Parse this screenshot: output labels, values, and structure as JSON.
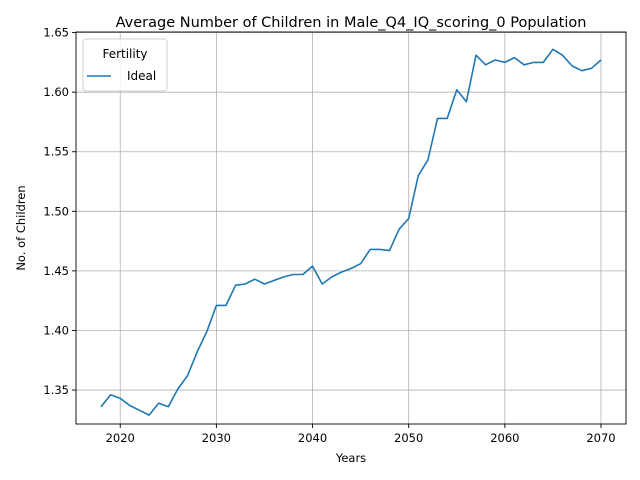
{
  "chart_data": {
    "type": "line",
    "title": "Average Number of Children in Male_Q4_IQ_scoring_0 Population",
    "xlabel": "Years",
    "ylabel": "No. of Children",
    "xlim": [
      2015.4,
      2072.6
    ],
    "ylim": [
      1.3215,
      1.6505
    ],
    "xticks": [
      2020,
      2030,
      2040,
      2050,
      2060,
      2070
    ],
    "yticks": [
      1.35,
      1.4,
      1.45,
      1.5,
      1.55,
      1.6,
      1.65
    ],
    "grid": true,
    "legend": {
      "title": "Fertility",
      "position": "top-left"
    },
    "series": [
      {
        "name": "Ideal",
        "color": "#1f77b4",
        "x": [
          2018,
          2019,
          2020,
          2021,
          2022,
          2023,
          2024,
          2025,
          2026,
          2027,
          2028,
          2029,
          2030,
          2031,
          2032,
          2033,
          2034,
          2035,
          2036,
          2037,
          2038,
          2039,
          2040,
          2041,
          2042,
          2043,
          2044,
          2045,
          2046,
          2047,
          2048,
          2049,
          2050,
          2051,
          2052,
          2053,
          2054,
          2055,
          2056,
          2057,
          2058,
          2059,
          2060,
          2061,
          2062,
          2063,
          2064,
          2065,
          2066,
          2067,
          2068,
          2069,
          2070
        ],
        "values": [
          1.336,
          1.346,
          1.343,
          1.337,
          1.333,
          1.329,
          1.339,
          1.336,
          1.351,
          1.362,
          1.382,
          1.399,
          1.421,
          1.421,
          1.438,
          1.439,
          1.443,
          1.439,
          1.442,
          1.445,
          1.447,
          1.447,
          1.454,
          1.439,
          1.445,
          1.449,
          1.452,
          1.456,
          1.468,
          1.468,
          1.467,
          1.485,
          1.494,
          1.53,
          1.543,
          1.578,
          1.578,
          1.602,
          1.592,
          1.631,
          1.623,
          1.627,
          1.625,
          1.629,
          1.623,
          1.625,
          1.625,
          1.636,
          1.631,
          1.622,
          1.618,
          1.62,
          1.627
        ]
      }
    ]
  }
}
